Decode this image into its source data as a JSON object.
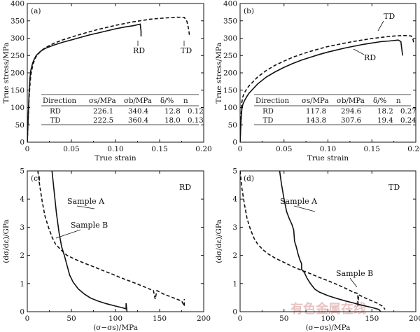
{
  "watermark": "有色金属在线",
  "chart_data": [
    {
      "id": "a",
      "type": "line",
      "panel_label": "(a)",
      "xlabel": "True strain",
      "ylabel": "True stress/MPa",
      "xlim": [
        0,
        0.2
      ],
      "ylim": [
        0,
        400
      ],
      "xticks": [
        "0",
        "0.05",
        "0.10",
        "0.15",
        "0.20"
      ],
      "yticks": [
        "0",
        "50",
        "100",
        "150",
        "200",
        "250",
        "300",
        "350",
        "400"
      ],
      "series": [
        {
          "name": "RD",
          "style": "solid",
          "points": [
            [
              0,
              0
            ],
            [
              0.002,
              140
            ],
            [
              0.003,
              185
            ],
            [
              0.004,
              207
            ],
            [
              0.006,
              228
            ],
            [
              0.008,
              240
            ],
            [
              0.01,
              250
            ],
            [
              0.015,
              262
            ],
            [
              0.02,
              270
            ],
            [
              0.03,
              280
            ],
            [
              0.04,
              288
            ],
            [
              0.05,
              295
            ],
            [
              0.06,
              302
            ],
            [
              0.07,
              309
            ],
            [
              0.08,
              315
            ],
            [
              0.09,
              321
            ],
            [
              0.1,
              327
            ],
            [
              0.11,
              332
            ],
            [
              0.12,
              336
            ],
            [
              0.128,
              340.4
            ],
            [
              0.129,
              320
            ],
            [
              0.129,
              305
            ]
          ]
        },
        {
          "name": "TD",
          "style": "dashed",
          "points": [
            [
              0,
              0
            ],
            [
              0.002,
              125
            ],
            [
              0.003,
              165
            ],
            [
              0.004,
              193
            ],
            [
              0.006,
              220
            ],
            [
              0.008,
              236
            ],
            [
              0.01,
              247
            ],
            [
              0.015,
              262
            ],
            [
              0.02,
              272
            ],
            [
              0.03,
              285
            ],
            [
              0.04,
              295
            ],
            [
              0.05,
              303
            ],
            [
              0.06,
              311
            ],
            [
              0.07,
              318
            ],
            [
              0.08,
              325
            ],
            [
              0.09,
              331
            ],
            [
              0.1,
              337
            ],
            [
              0.11,
              342
            ],
            [
              0.12,
              347
            ],
            [
              0.13,
              351
            ],
            [
              0.14,
              355
            ],
            [
              0.15,
              357
            ],
            [
              0.16,
              359
            ],
            [
              0.17,
              360.4
            ],
            [
              0.178,
              360
            ],
            [
              0.181,
              348
            ],
            [
              0.183,
              325
            ],
            [
              0.184,
              305
            ]
          ]
        }
      ],
      "annotations": [
        "RD",
        "TD"
      ],
      "table": {
        "headers": [
          "Direction",
          "σs/MPa",
          "σb/MPa",
          "δ/%",
          "n"
        ],
        "rows": [
          [
            "RD",
            "226.1",
            "340.4",
            "12.8",
            "0.12"
          ],
          [
            "TD",
            "222.5",
            "360.4",
            "18.0",
            "0.13"
          ]
        ]
      }
    },
    {
      "id": "b",
      "type": "line",
      "panel_label": "(b)",
      "xlabel": "True strain",
      "ylabel": "True stress/MPa",
      "xlim": [
        0,
        0.2
      ],
      "ylim": [
        0,
        400
      ],
      "xticks": [
        "0",
        "0.05",
        "0.10",
        "0.15",
        "0.20"
      ],
      "yticks": [
        "0",
        "50",
        "100",
        "150",
        "200",
        "250",
        "300",
        "350",
        "400"
      ],
      "series": [
        {
          "name": "RD",
          "style": "solid",
          "points": [
            [
              0,
              0
            ],
            [
              0.001,
              60
            ],
            [
              0.002,
              95
            ],
            [
              0.003,
              108
            ],
            [
              0.005,
              120
            ],
            [
              0.008,
              133
            ],
            [
              0.01,
              141
            ],
            [
              0.02,
              168
            ],
            [
              0.03,
              188
            ],
            [
              0.04,
              203
            ],
            [
              0.05,
              216
            ],
            [
              0.06,
              227
            ],
            [
              0.07,
              237
            ],
            [
              0.08,
              245
            ],
            [
              0.09,
              253
            ],
            [
              0.1,
              260
            ],
            [
              0.11,
              266
            ],
            [
              0.12,
              272
            ],
            [
              0.13,
              277
            ],
            [
              0.14,
              282
            ],
            [
              0.15,
              286
            ],
            [
              0.16,
              290
            ],
            [
              0.17,
              292
            ],
            [
              0.18,
              294.6
            ],
            [
              0.183,
              290
            ],
            [
              0.184,
              270
            ],
            [
              0.185,
              250
            ]
          ]
        },
        {
          "name": "TD",
          "style": "dashed",
          "points": [
            [
              0,
              0
            ],
            [
              0.001,
              75
            ],
            [
              0.002,
              115
            ],
            [
              0.003,
              130
            ],
            [
              0.005,
              143
            ],
            [
              0.008,
              155
            ],
            [
              0.01,
              162
            ],
            [
              0.02,
              188
            ],
            [
              0.03,
              207
            ],
            [
              0.04,
              222
            ],
            [
              0.05,
              234
            ],
            [
              0.06,
              245
            ],
            [
              0.07,
              254
            ],
            [
              0.08,
              262
            ],
            [
              0.09,
              269
            ],
            [
              0.1,
              276
            ],
            [
              0.11,
              281
            ],
            [
              0.12,
              286
            ],
            [
              0.13,
              291
            ],
            [
              0.14,
              295
            ],
            [
              0.15,
              299
            ],
            [
              0.16,
              302
            ],
            [
              0.17,
              305
            ],
            [
              0.18,
              307
            ],
            [
              0.19,
              307.6
            ],
            [
              0.195,
              306
            ],
            [
              0.197,
              295
            ],
            [
              0.198,
              282
            ]
          ]
        }
      ],
      "annotations": [
        "TD",
        "RD"
      ],
      "table": {
        "headers": [
          "Direction",
          "σs/MPa",
          "σb/MPa",
          "δ/%",
          "n"
        ],
        "rows": [
          [
            "RD",
            "117.8",
            "294.6",
            "18.2",
            "0.27"
          ],
          [
            "TD",
            "143.8",
            "307.6",
            "19.4",
            "0.24"
          ]
        ]
      }
    },
    {
      "id": "c",
      "type": "line",
      "panel_label": "(c)",
      "corner_label": "RD",
      "xlabel": "(σ−σs)/MPa",
      "ylabel": "(dσ/dε)/GPa",
      "xlim": [
        0,
        200
      ],
      "ylim": [
        0,
        5
      ],
      "xticks": [
        "0",
        "50",
        "100",
        "150",
        "200"
      ],
      "yticks": [
        "0",
        "1",
        "2",
        "3",
        "4",
        "5"
      ],
      "series": [
        {
          "name": "Sample A",
          "style": "solid",
          "points": [
            [
              28,
              5.0
            ],
            [
              30,
              4.4
            ],
            [
              33,
              3.5
            ],
            [
              36,
              2.8
            ],
            [
              39,
              2.3
            ],
            [
              42,
              2.0
            ],
            [
              45,
              1.65
            ],
            [
              48,
              1.3
            ],
            [
              52,
              1.05
            ],
            [
              58,
              0.8
            ],
            [
              65,
              0.62
            ],
            [
              72,
              0.48
            ],
            [
              80,
              0.38
            ],
            [
              90,
              0.28
            ],
            [
              100,
              0.2
            ],
            [
              108,
              0.14
            ],
            [
              112,
              0.1
            ],
            [
              112,
              0.3
            ],
            [
              113,
              0.0
            ]
          ]
        },
        {
          "name": "Sample B",
          "style": "dashed",
          "points": [
            [
              12,
              5.0
            ],
            [
              14,
              4.5
            ],
            [
              17,
              3.9
            ],
            [
              20,
              3.4
            ],
            [
              24,
              3.0
            ],
            [
              28,
              2.65
            ],
            [
              32,
              2.4
            ],
            [
              38,
              2.2
            ],
            [
              45,
              2.0
            ],
            [
              55,
              1.85
            ],
            [
              65,
              1.72
            ],
            [
              75,
              1.6
            ],
            [
              85,
              1.47
            ],
            [
              95,
              1.35
            ],
            [
              105,
              1.22
            ],
            [
              115,
              1.1
            ],
            [
              125,
              0.98
            ],
            [
              135,
              0.85
            ],
            [
              143,
              0.75
            ],
            [
              145,
              0.45
            ],
            [
              147,
              0.75
            ],
            [
              155,
              0.62
            ],
            [
              165,
              0.5
            ],
            [
              175,
              0.38
            ],
            [
              178,
              0.2
            ],
            [
              178,
              0.45
            ]
          ]
        }
      ],
      "annotations": [
        "Sample A",
        "Sample B"
      ]
    },
    {
      "id": "d",
      "type": "line",
      "panel_label": "(d)",
      "corner_label": "TD",
      "xlabel": "(σ−σs)/MPa",
      "ylabel": "(dσ/dε)/GPa",
      "xlim": [
        0,
        200
      ],
      "ylim": [
        0,
        5
      ],
      "xticks": [
        "0",
        "50",
        "100",
        "150",
        "200"
      ],
      "yticks": [
        "0",
        "1",
        "2",
        "3",
        "4",
        "5"
      ],
      "series": [
        {
          "name": "Sample A",
          "style": "solid",
          "points": [
            [
              45,
              5.0
            ],
            [
              47,
              4.55
            ],
            [
              50,
              4.0
            ],
            [
              53,
              3.55
            ],
            [
              56,
              3.3
            ],
            [
              59,
              3.1
            ],
            [
              61,
              2.9
            ],
            [
              62,
              2.5
            ],
            [
              64,
              2.3
            ],
            [
              66,
              2.05
            ],
            [
              68,
              1.85
            ],
            [
              70,
              1.7
            ],
            [
              70,
              1.5
            ],
            [
              73,
              1.4
            ],
            [
              76,
              1.2
            ],
            [
              80,
              1.0
            ],
            [
              85,
              0.8
            ],
            [
              90,
              0.7
            ],
            [
              100,
              0.57
            ],
            [
              110,
              0.47
            ],
            [
              120,
              0.38
            ],
            [
              130,
              0.3
            ],
            [
              140,
              0.22
            ],
            [
              150,
              0.15
            ],
            [
              158,
              0.08
            ],
            [
              160,
              0.0
            ]
          ]
        },
        {
          "name": "Sample B",
          "style": "dashed",
          "points": [
            [
              0,
              5.0
            ],
            [
              2,
              4.4
            ],
            [
              5,
              3.8
            ],
            [
              8,
              3.3
            ],
            [
              12,
              2.9
            ],
            [
              16,
              2.6
            ],
            [
              20,
              2.4
            ],
            [
              26,
              2.2
            ],
            [
              32,
              2.05
            ],
            [
              40,
              1.9
            ],
            [
              50,
              1.75
            ],
            [
              60,
              1.6
            ],
            [
              70,
              1.47
            ],
            [
              80,
              1.35
            ],
            [
              90,
              1.22
            ],
            [
              100,
              1.1
            ],
            [
              110,
              0.97
            ],
            [
              120,
              0.83
            ],
            [
              130,
              0.68
            ],
            [
              134,
              0.65
            ],
            [
              134,
              0.2
            ],
            [
              135,
              0.6
            ],
            [
              145,
              0.45
            ],
            [
              155,
              0.32
            ],
            [
              162,
              0.2
            ],
            [
              165,
              0.08
            ]
          ]
        }
      ],
      "annotations": [
        "Sample A",
        "Sample B"
      ]
    }
  ]
}
